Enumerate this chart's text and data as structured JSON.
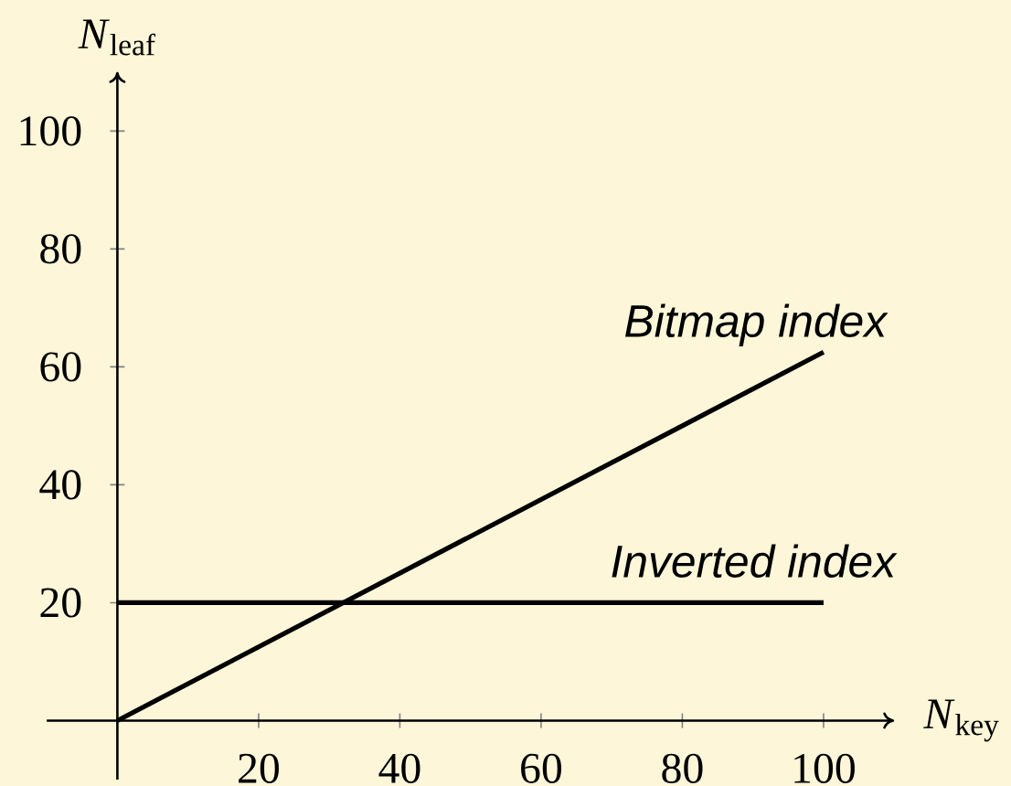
{
  "chart_data": {
    "type": "line",
    "xlabel": "*N*$_{key}$",
    "ylabel": "*N*$_{leaf}$",
    "xlim": [
      -10,
      110
    ],
    "ylim": [
      -10,
      110
    ],
    "xticks": [
      20,
      40,
      60,
      80,
      100
    ],
    "yticks": [
      20,
      40,
      60,
      80,
      100
    ],
    "marker": "none",
    "x": [
      0,
      100
    ],
    "series": [
      {
        "name": "Bitmap index",
        "color": "#000000",
        "values": [
          0,
          62.5
        ]
      },
      {
        "name": "Inverted index",
        "color": "#000000",
        "values": [
          20,
          20
        ]
      }
    ]
  }
}
